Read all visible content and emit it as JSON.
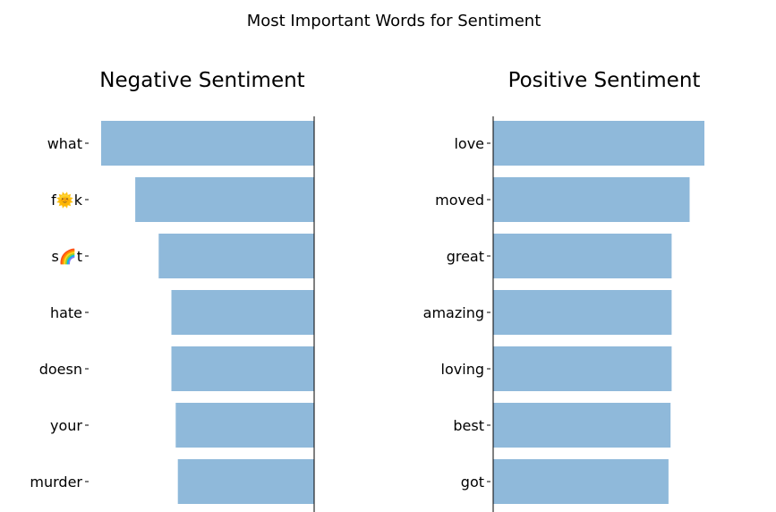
{
  "chart_data": {
    "suptitle": "Most Important Words for Sentiment",
    "panels": [
      {
        "type": "bar",
        "orientation": "horizontal",
        "direction": "leftward",
        "title": "Negative Sentiment",
        "categories": [
          "what",
          "f🌞k",
          "s🌈t",
          "hate",
          "doesn",
          "your",
          "murder"
        ],
        "values": [
          1.0,
          0.84,
          0.73,
          0.67,
          0.67,
          0.65,
          0.64
        ],
        "xlim": [
          0,
          1.0
        ],
        "bar_color": "#8fb9da"
      },
      {
        "type": "bar",
        "orientation": "horizontal",
        "direction": "rightward",
        "title": "Positive Sentiment",
        "categories": [
          "love",
          "moved",
          "great",
          "amazing",
          "loving",
          "best",
          "got"
        ],
        "values": [
          1.0,
          0.93,
          0.845,
          0.845,
          0.845,
          0.84,
          0.83
        ],
        "xlim": [
          0,
          1.0
        ],
        "bar_color": "#8fb9da"
      }
    ]
  }
}
